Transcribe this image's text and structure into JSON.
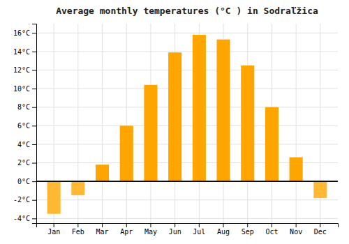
{
  "chart_data": {
    "type": "bar",
    "title": "Average monthly temperatures (°C ) in Sodraľžica",
    "categories": [
      "Jan",
      "Feb",
      "Mar",
      "Apr",
      "May",
      "Jun",
      "Jul",
      "Aug",
      "Sep",
      "Oct",
      "Nov",
      "Dec"
    ],
    "values": [
      -3.5,
      -1.5,
      1.8,
      6.0,
      10.4,
      13.9,
      15.8,
      15.3,
      12.5,
      8.0,
      2.6,
      -1.8
    ],
    "colors": [
      "#FFB833",
      "#FFB833",
      "#FFA500",
      "#FFA500",
      "#FFA500",
      "#FFA500",
      "#FFA500",
      "#FFA500",
      "#FFA500",
      "#FFA500",
      "#FFA500",
      "#FFB833"
    ],
    "ylim": [
      -4.5,
      17.0
    ],
    "yticks": [
      {
        "value": -4,
        "label": "-4°C"
      },
      {
        "value": -2,
        "label": "-2°C"
      },
      {
        "value": 0,
        "label": "0°C"
      },
      {
        "value": 2,
        "label": "2°C"
      },
      {
        "value": 4,
        "label": "4°C"
      },
      {
        "value": 6,
        "label": "6°C"
      },
      {
        "value": 8,
        "label": "8°C"
      },
      {
        "value": 10,
        "label": "10°C"
      },
      {
        "value": 12,
        "label": "12°C"
      },
      {
        "value": 14,
        "label": "14°C"
      },
      {
        "value": 16,
        "label": "16°C"
      }
    ],
    "grid": true
  }
}
